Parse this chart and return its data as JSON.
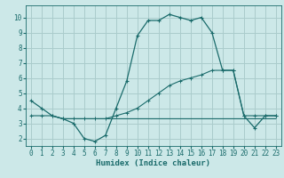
{
  "xlabel": "Humidex (Indice chaleur)",
  "bg_color": "#cce8e8",
  "grid_color": "#aacccc",
  "line_color": "#1a6b6b",
  "xlim": [
    -0.5,
    23.5
  ],
  "ylim": [
    1.5,
    10.8
  ],
  "xticks": [
    0,
    1,
    2,
    3,
    4,
    5,
    6,
    7,
    8,
    9,
    10,
    11,
    12,
    13,
    14,
    15,
    16,
    17,
    18,
    19,
    20,
    21,
    22,
    23
  ],
  "yticks": [
    2,
    3,
    4,
    5,
    6,
    7,
    8,
    9,
    10
  ],
  "series1_x": [
    0,
    1,
    2,
    3,
    4,
    5,
    6,
    7,
    8,
    9,
    10,
    11,
    12,
    13,
    14,
    15,
    16,
    17,
    18,
    19,
    20,
    21,
    22,
    23
  ],
  "series1_y": [
    4.5,
    4.0,
    3.5,
    3.3,
    3.0,
    2.0,
    1.8,
    2.2,
    4.0,
    5.8,
    8.8,
    9.8,
    9.8,
    10.2,
    10.0,
    9.8,
    10.0,
    9.0,
    6.5,
    6.5,
    3.5,
    2.7,
    3.5,
    3.5
  ],
  "series2_x": [
    0,
    1,
    2,
    3,
    4,
    5,
    6,
    7,
    8,
    9,
    10,
    11,
    12,
    13,
    14,
    15,
    16,
    17,
    18,
    19,
    20,
    21,
    22,
    23
  ],
  "series2_y": [
    3.5,
    3.5,
    3.5,
    3.3,
    3.3,
    3.3,
    3.3,
    3.3,
    3.5,
    3.7,
    4.0,
    4.5,
    5.0,
    5.5,
    5.8,
    6.0,
    6.2,
    6.5,
    6.5,
    6.5,
    3.5,
    3.5,
    3.5,
    3.5
  ],
  "series3_x": [
    2,
    3,
    4,
    5,
    6,
    7,
    8,
    9,
    10,
    11,
    12,
    13,
    14,
    15,
    16,
    17,
    18,
    19,
    20,
    21,
    22,
    23
  ],
  "series3_y": [
    3.5,
    3.3,
    3.3,
    3.3,
    3.3,
    3.3,
    3.3,
    3.3,
    3.3,
    3.3,
    3.3,
    3.3,
    3.3,
    3.3,
    3.3,
    3.3,
    3.3,
    3.3,
    3.3,
    3.3,
    3.3,
    3.3
  ]
}
